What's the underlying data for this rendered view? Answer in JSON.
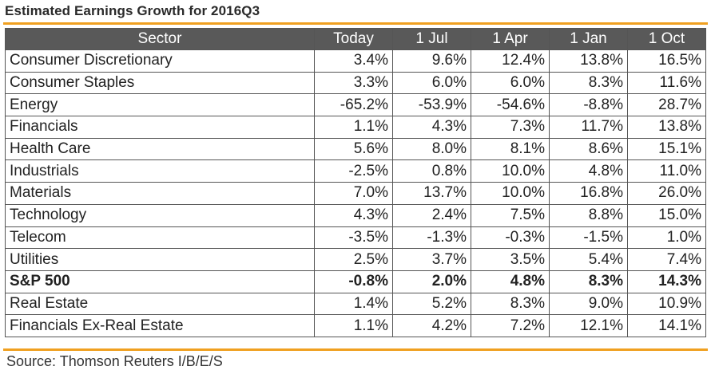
{
  "title": "Estimated Earnings Growth for  2016Q3",
  "columns": [
    "Sector",
    "Today",
    "1 Jul",
    "1 Apr",
    "1 Jan",
    "1 Oct"
  ],
  "rows": [
    {
      "sector": "Consumer Discretionary",
      "values": [
        "3.4%",
        "9.6%",
        "12.4%",
        "13.8%",
        "16.5%"
      ]
    },
    {
      "sector": "Consumer Staples",
      "values": [
        "3.3%",
        "6.0%",
        "6.0%",
        "8.3%",
        "11.6%"
      ]
    },
    {
      "sector": "Energy",
      "values": [
        "-65.2%",
        "-53.9%",
        "-54.6%",
        "-8.8%",
        "28.7%"
      ]
    },
    {
      "sector": "Financials",
      "values": [
        "1.1%",
        "4.3%",
        "7.3%",
        "11.7%",
        "13.8%"
      ]
    },
    {
      "sector": "Health Care",
      "values": [
        "5.6%",
        "8.0%",
        "8.1%",
        "8.6%",
        "15.1%"
      ]
    },
    {
      "sector": "Industrials",
      "values": [
        "-2.5%",
        "0.8%",
        "10.0%",
        "4.8%",
        "11.0%"
      ]
    },
    {
      "sector": "Materials",
      "values": [
        "7.0%",
        "13.7%",
        "10.0%",
        "16.8%",
        "26.0%"
      ]
    },
    {
      "sector": "Technology",
      "values": [
        "4.3%",
        "2.4%",
        "7.5%",
        "8.8%",
        "15.0%"
      ]
    },
    {
      "sector": "Telecom",
      "values": [
        "-3.5%",
        "-1.3%",
        "-0.3%",
        "-1.5%",
        "1.0%"
      ]
    },
    {
      "sector": "Utilities",
      "values": [
        "2.5%",
        "3.7%",
        "3.5%",
        "5.4%",
        "7.4%"
      ]
    },
    {
      "sector": "S&P 500",
      "values": [
        "-0.8%",
        "2.0%",
        "4.8%",
        "8.3%",
        "14.3%"
      ],
      "bold": true
    },
    {
      "sector": "Real Estate",
      "values": [
        "1.4%",
        "5.2%",
        "8.3%",
        "9.0%",
        "10.9%"
      ]
    },
    {
      "sector": "Financials Ex-Real Estate",
      "values": [
        "1.1%",
        "4.2%",
        "7.2%",
        "12.1%",
        "14.1%"
      ]
    }
  ],
  "source": "Source: Thomson Reuters I/B/E/S",
  "colors": {
    "accent_rule": "#f0a020",
    "header_bg": "#595959",
    "header_text": "#ffffff"
  }
}
